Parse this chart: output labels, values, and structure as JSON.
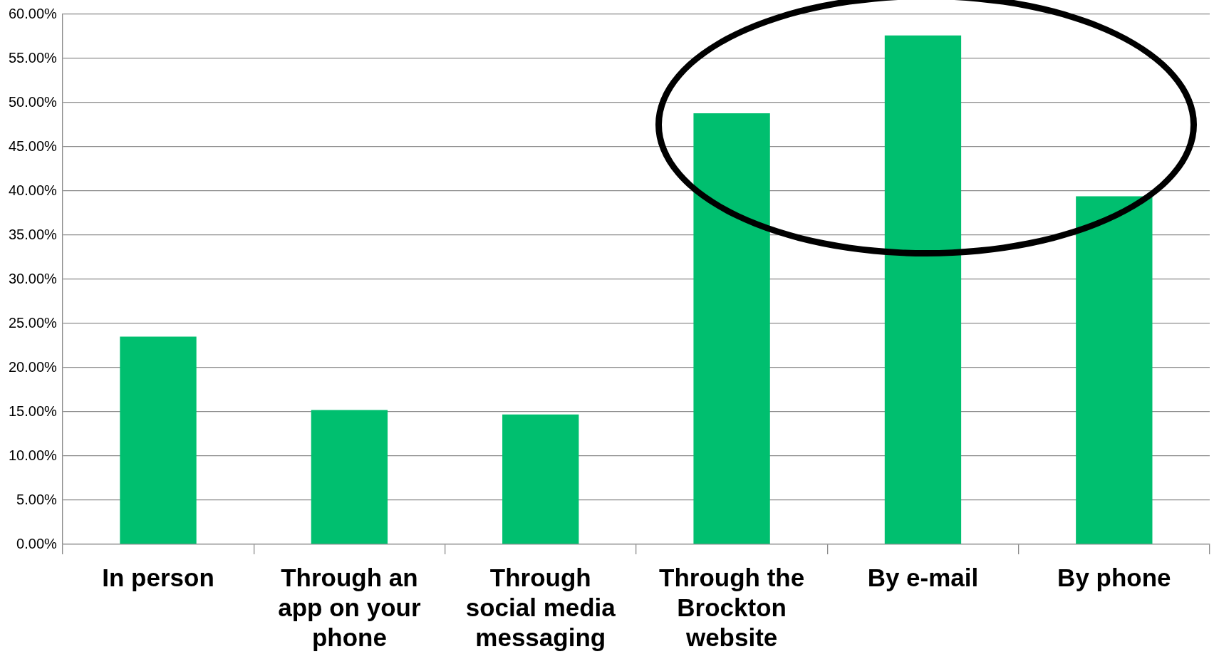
{
  "chart_data": {
    "type": "bar",
    "categories": [
      "In person",
      "Through an app on your phone",
      "Through social media messaging",
      "Through the Brockton website",
      "By e-mail",
      "By phone"
    ],
    "values": [
      23.5,
      15.2,
      14.7,
      48.8,
      57.6,
      39.4
    ],
    "color": "#00bf6f",
    "ylim": [
      0,
      60
    ],
    "yticks": [
      {
        "value": 0,
        "label": "0.00%"
      },
      {
        "value": 5,
        "label": "5.00%"
      },
      {
        "value": 10,
        "label": "10.00%"
      },
      {
        "value": 15,
        "label": "15.00%"
      },
      {
        "value": 20,
        "label": "20.00%"
      },
      {
        "value": 25,
        "label": "25.00%"
      },
      {
        "value": 30,
        "label": "30.00%"
      },
      {
        "value": 35,
        "label": "35.00%"
      },
      {
        "value": 40,
        "label": "40.00%"
      },
      {
        "value": 45,
        "label": "45.00%"
      },
      {
        "value": 50,
        "label": "50.00%"
      },
      {
        "value": 55,
        "label": "55.00%"
      },
      {
        "value": 60,
        "label": "60.00%"
      }
    ],
    "grid": "y"
  }
}
